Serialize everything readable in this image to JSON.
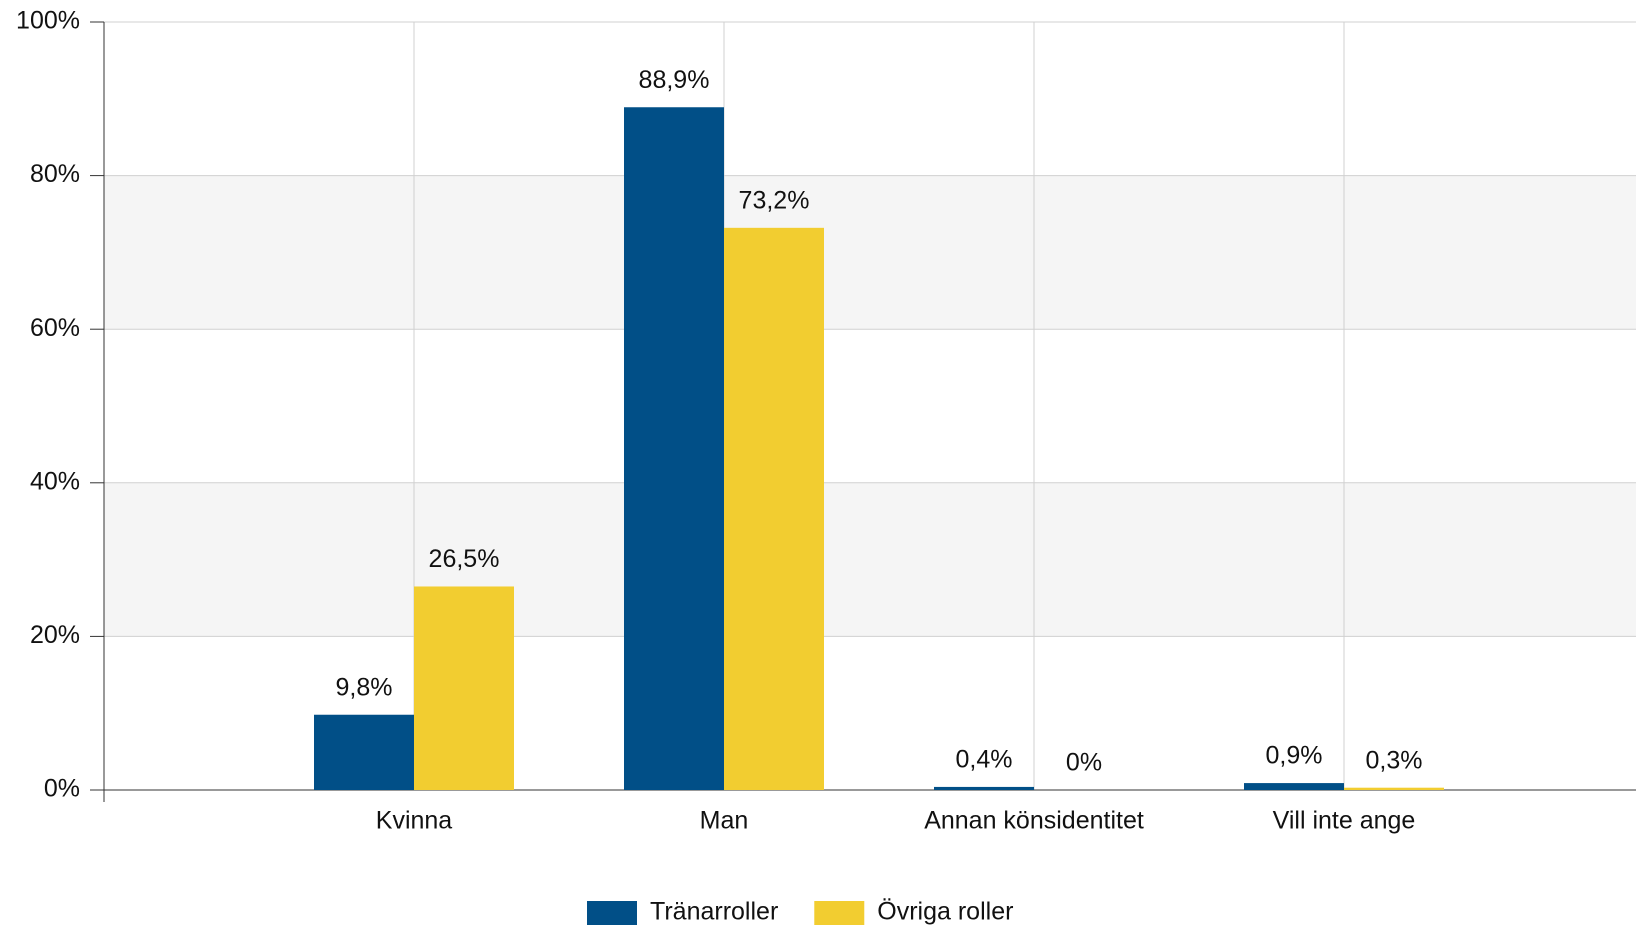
{
  "chart_data": {
    "type": "bar",
    "categories": [
      "Kvinna",
      "Man",
      "Annan könsidentitet",
      "Vill inte ange"
    ],
    "series": [
      {
        "name": "Tränarroller",
        "color": "#014f87",
        "values": [
          9.8,
          88.9,
          0.4,
          0.9
        ],
        "value_labels": [
          "9,8%",
          "88,9%",
          "0,4%",
          "0,9%"
        ]
      },
      {
        "name": "Övriga roller",
        "color": "#f2cd30",
        "values": [
          26.5,
          73.2,
          0,
          0.3
        ],
        "value_labels": [
          "26,5%",
          "73,2%",
          "0%",
          "0,3%"
        ]
      }
    ],
    "ylim": [
      0,
      100
    ],
    "yticks": [
      {
        "value": 0,
        "label": "0%"
      },
      {
        "value": 20,
        "label": "20%"
      },
      {
        "value": 40,
        "label": "40%"
      },
      {
        "value": 60,
        "label": "60%"
      },
      {
        "value": 80,
        "label": "80%"
      },
      {
        "value": 100,
        "label": "100%"
      }
    ],
    "grid": true,
    "legend": "bottom"
  }
}
